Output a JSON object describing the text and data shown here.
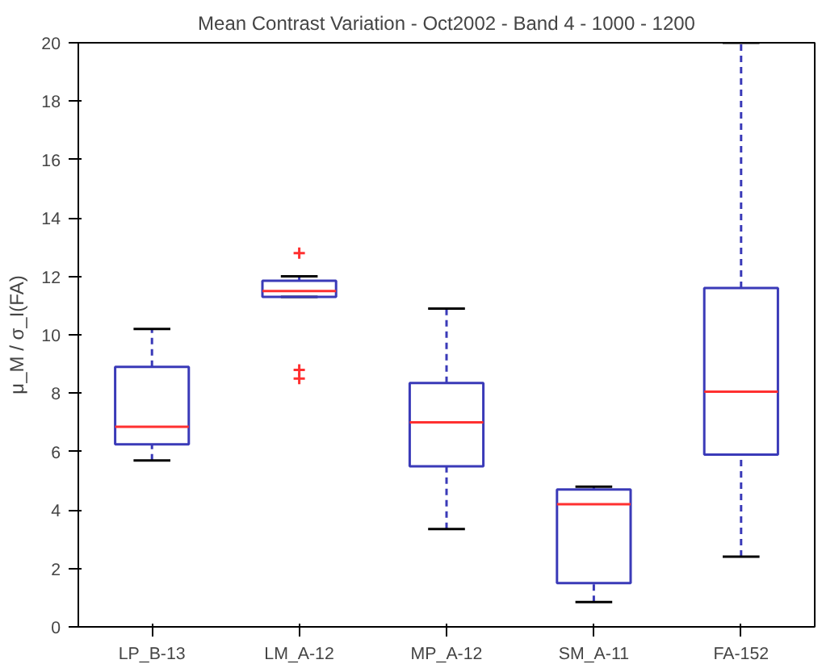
{
  "chart_data": {
    "type": "box",
    "title": "Mean Contrast Variation - Oct2002 - Band 4 - 1000 - 1200",
    "ylabel": "μ_M / σ_I(FA)",
    "categories": [
      "LP_B-13",
      "LM_A-12",
      "MP_A-12",
      "SM_A-11",
      "FA-152"
    ],
    "boxes": [
      {
        "low": 5.7,
        "q1": 6.25,
        "median": 6.85,
        "q3": 8.9,
        "high": 10.2
      },
      {
        "low": 11.3,
        "q1": 11.3,
        "median": 11.5,
        "q3": 11.85,
        "high": 12.0,
        "outliers": [
          12.8,
          8.8,
          8.5
        ]
      },
      {
        "low": 3.35,
        "q1": 5.5,
        "median": 7.0,
        "q3": 8.35,
        "high": 10.9
      },
      {
        "low": 0.85,
        "q1": 1.5,
        "median": 4.2,
        "q3": 4.7,
        "high": 4.8
      },
      {
        "low": 2.4,
        "q1": 5.9,
        "median": 8.05,
        "q3": 11.6,
        "high": 20
      }
    ],
    "color": "#3a3ab8",
    "marker": "cross",
    "ylim": [
      0,
      20
    ],
    "yticks": [
      0,
      2,
      4,
      6,
      8,
      10,
      12,
      14,
      16,
      18,
      20
    ],
    "grid": false
  }
}
